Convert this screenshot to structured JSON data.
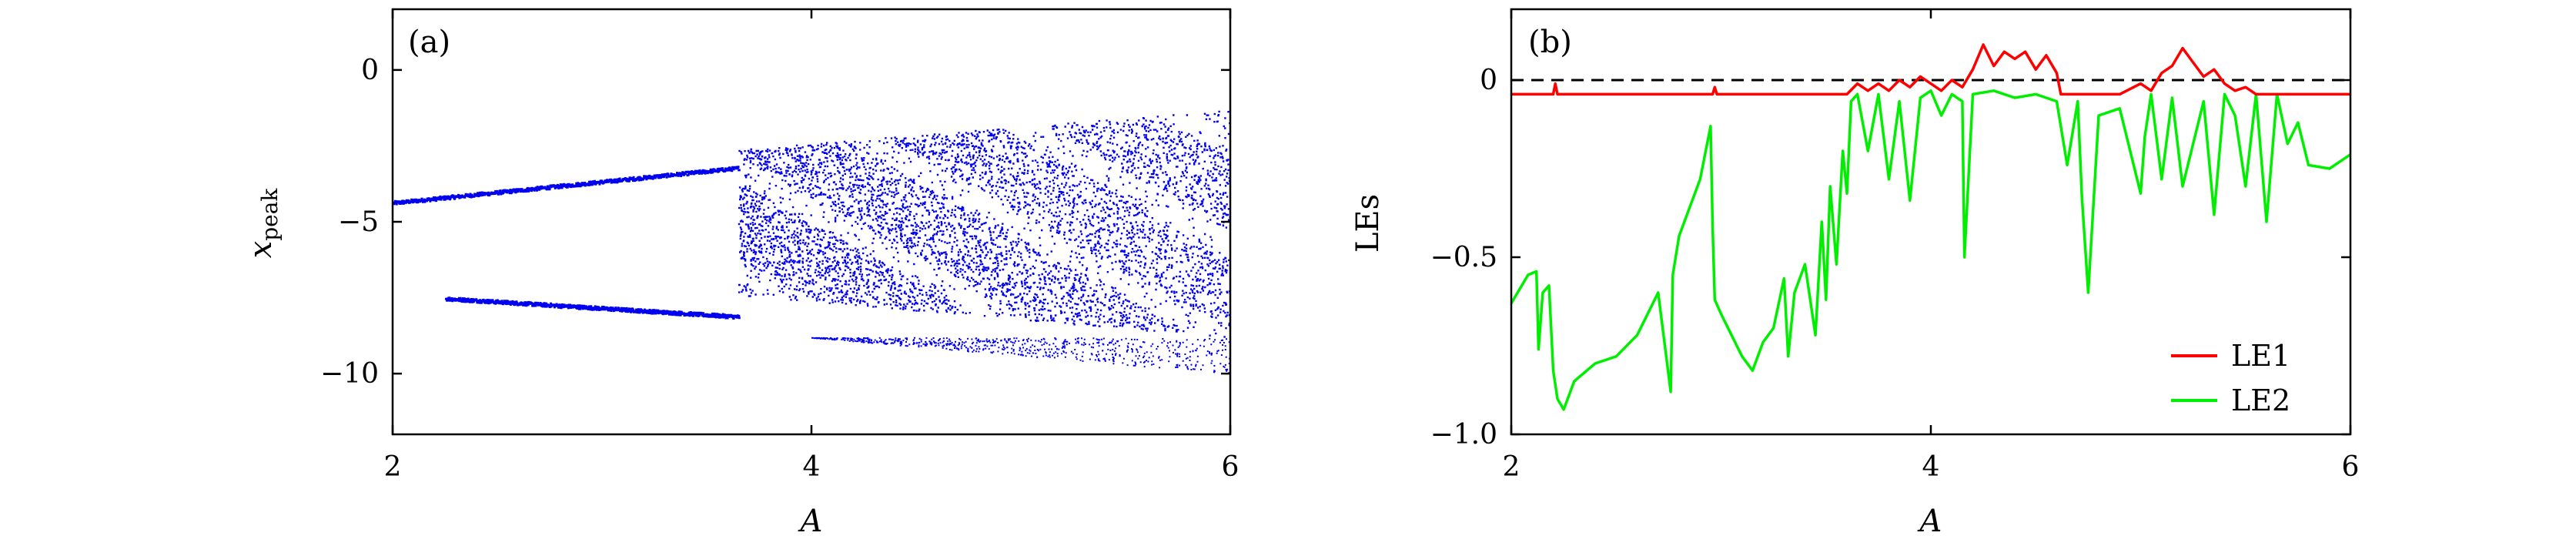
{
  "chart_data": [
    {
      "type": "scatter",
      "panel_label": "(a)",
      "xlabel": "A",
      "ylabel_main": "x",
      "ylabel_sub": "peak",
      "xlim": [
        2,
        6
      ],
      "ylim": [
        -12,
        2
      ],
      "xticks": [
        2,
        4,
        6
      ],
      "yticks": [
        0,
        -5,
        -10
      ],
      "tick_labels_x": [
        "2",
        "4",
        "6"
      ],
      "tick_labels_y": [
        "0",
        "−5",
        "−10"
      ],
      "grid": false,
      "color": "#0000ee",
      "periodic_branches": [
        {
          "x": [
            2.0,
            3.65
          ],
          "y": [
            -4.35,
            -3.2
          ]
        },
        {
          "x": [
            2.25,
            3.65
          ],
          "y": [
            -7.5,
            -8.1
          ]
        }
      ],
      "chaotic_region": {
        "x": [
          3.65,
          6.0
        ],
        "upper_y": [
          -2.6,
          -1.3
        ],
        "lower_y": [
          -7.4,
          -8.8
        ],
        "sparse_tail_y": [
          -8.8,
          -10.0
        ]
      }
    },
    {
      "type": "line",
      "panel_label": "(b)",
      "xlabel": "A",
      "ylabel": "LEs",
      "xlim": [
        2,
        6
      ],
      "ylim": [
        -1.0,
        0.2
      ],
      "xticks": [
        2,
        4,
        6
      ],
      "yticks": [
        0,
        -0.5,
        -1.0
      ],
      "tick_labels_x": [
        "2",
        "4",
        "6"
      ],
      "tick_labels_y": [
        "0",
        "−0.5",
        "−1.0"
      ],
      "grid": false,
      "legend_position": "lower-right",
      "zero_line": {
        "y": 0,
        "style": "dashed",
        "color": "#000000"
      },
      "series": [
        {
          "name": "LE1",
          "color": "#ff0000",
          "x": [
            2.0,
            2.2,
            2.21,
            2.22,
            2.96,
            2.97,
            2.98,
            3.6,
            3.65,
            3.7,
            3.75,
            3.8,
            3.85,
            3.9,
            3.95,
            4.0,
            4.05,
            4.1,
            4.15,
            4.2,
            4.25,
            4.3,
            4.35,
            4.4,
            4.45,
            4.5,
            4.55,
            4.6,
            4.62,
            4.65,
            4.7,
            4.8,
            4.9,
            5.0,
            5.05,
            5.1,
            5.15,
            5.2,
            5.25,
            5.3,
            5.35,
            5.4,
            5.45,
            5.5,
            5.55,
            5.6,
            5.7,
            5.8,
            5.9,
            6.0
          ],
          "y": [
            -0.04,
            -0.04,
            -0.01,
            -0.04,
            -0.04,
            -0.02,
            -0.04,
            -0.04,
            -0.01,
            -0.03,
            -0.01,
            -0.03,
            0.0,
            -0.02,
            0.01,
            -0.01,
            -0.03,
            0.0,
            -0.02,
            0.03,
            0.1,
            0.04,
            0.08,
            0.06,
            0.08,
            0.03,
            0.07,
            0.02,
            -0.04,
            -0.04,
            -0.04,
            -0.04,
            -0.04,
            -0.01,
            -0.03,
            0.02,
            0.04,
            0.09,
            0.05,
            0.01,
            0.03,
            -0.01,
            -0.03,
            -0.02,
            -0.04,
            -0.04,
            -0.04,
            -0.04,
            -0.04,
            -0.04
          ]
        },
        {
          "name": "LE2",
          "color": "#00ee00",
          "x": [
            2.0,
            2.08,
            2.12,
            2.13,
            2.15,
            2.18,
            2.2,
            2.22,
            2.25,
            2.3,
            2.4,
            2.5,
            2.6,
            2.7,
            2.76,
            2.77,
            2.8,
            2.9,
            2.95,
            2.96,
            2.97,
            3.0,
            3.05,
            3.1,
            3.15,
            3.2,
            3.25,
            3.3,
            3.32,
            3.35,
            3.4,
            3.45,
            3.48,
            3.5,
            3.52,
            3.55,
            3.58,
            3.6,
            3.62,
            3.65,
            3.7,
            3.75,
            3.8,
            3.85,
            3.9,
            3.95,
            4.0,
            4.05,
            4.1,
            4.15,
            4.16,
            4.2,
            4.3,
            4.4,
            4.5,
            4.6,
            4.65,
            4.7,
            4.72,
            4.75,
            4.8,
            4.9,
            5.0,
            5.02,
            5.05,
            5.1,
            5.15,
            5.2,
            5.3,
            5.35,
            5.4,
            5.45,
            5.5,
            5.55,
            5.6,
            5.65,
            5.7,
            5.75,
            5.8,
            5.9,
            6.0
          ],
          "y": [
            -0.63,
            -0.55,
            -0.54,
            -0.76,
            -0.6,
            -0.58,
            -0.82,
            -0.9,
            -0.93,
            -0.85,
            -0.8,
            -0.78,
            -0.72,
            -0.6,
            -0.88,
            -0.55,
            -0.44,
            -0.28,
            -0.13,
            -0.42,
            -0.62,
            -0.66,
            -0.72,
            -0.78,
            -0.82,
            -0.74,
            -0.7,
            -0.56,
            -0.78,
            -0.6,
            -0.52,
            -0.72,
            -0.4,
            -0.62,
            -0.3,
            -0.52,
            -0.2,
            -0.32,
            -0.06,
            -0.04,
            -0.2,
            -0.04,
            -0.28,
            -0.06,
            -0.34,
            -0.05,
            -0.03,
            -0.1,
            -0.04,
            -0.06,
            -0.5,
            -0.04,
            -0.03,
            -0.05,
            -0.04,
            -0.06,
            -0.24,
            -0.06,
            -0.33,
            -0.6,
            -0.1,
            -0.08,
            -0.32,
            -0.16,
            -0.04,
            -0.28,
            -0.05,
            -0.3,
            -0.06,
            -0.38,
            -0.04,
            -0.1,
            -0.3,
            -0.04,
            -0.4,
            -0.04,
            -0.18,
            -0.12,
            -0.24,
            -0.25,
            -0.21
          ]
        }
      ]
    }
  ]
}
